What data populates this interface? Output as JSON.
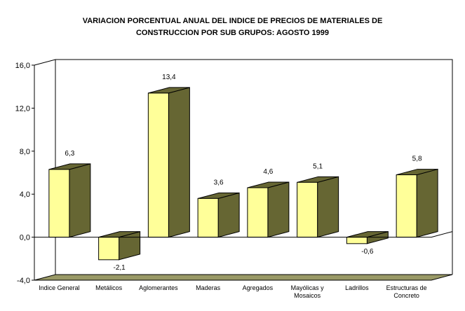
{
  "chart_data": {
    "type": "bar",
    "title_lines": [
      "VARIACION PORCENTUAL ANUAL DEL INDICE DE PRECIOS DE MATERIALES DE",
      "CONSTRUCCION POR SUB GRUPOS: AGOSTO 1999"
    ],
    "categories": [
      [
        "Indice General"
      ],
      [
        "Metálicos"
      ],
      [
        "Aglomerantes"
      ],
      [
        "Maderas"
      ],
      [
        "Agregados"
      ],
      [
        "Mayólicas y",
        "Mosaicos"
      ],
      [
        "Ladrillos"
      ],
      [
        "Estructuras de",
        "Concreto"
      ]
    ],
    "values": [
      6.3,
      -2.1,
      13.4,
      3.6,
      4.6,
      5.1,
      -0.6,
      5.8
    ],
    "value_labels": [
      "6,3",
      "-2,1",
      "13,4",
      "3,6",
      "4,6",
      "5,1",
      "-0,6",
      "5,8"
    ],
    "yticks": [
      -4.0,
      0.0,
      4.0,
      8.0,
      12.0,
      16.0
    ],
    "ytick_labels": [
      "-4,0",
      "0,0",
      "4,0",
      "8,0",
      "12,0",
      "16,0"
    ],
    "ylim": [
      -4.0,
      16.0
    ],
    "xlabel": "",
    "ylabel": "",
    "grid": false,
    "legend": "none",
    "colors": {
      "bar_front": "#ffff99",
      "bar_side": "#666633",
      "bar_top": "#666633",
      "floor": "#999966",
      "axis": "#000000",
      "background": "#ffffff"
    }
  }
}
